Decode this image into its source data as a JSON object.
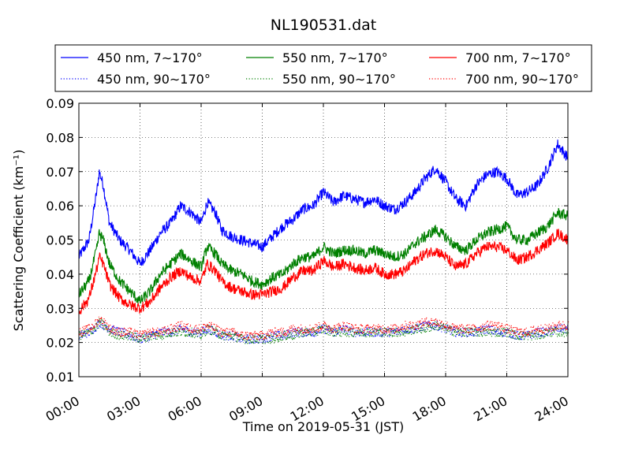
{
  "chart_data": {
    "type": "line",
    "title": "NL190531.dat",
    "xlabel": "Time on 2019-05-31 (JST)",
    "ylabel": "Scattering Coefficient (km⁻¹)",
    "ylim": [
      0.01,
      0.09
    ],
    "xlim": [
      "00:00",
      "24:00"
    ],
    "x_ticks": [
      "00:00",
      "03:00",
      "06:00",
      "09:00",
      "12:00",
      "15:00",
      "18:00",
      "21:00",
      "24:00"
    ],
    "y_ticks": [
      "0.01",
      "0.02",
      "0.03",
      "0.04",
      "0.05",
      "0.06",
      "0.07",
      "0.08",
      "0.09"
    ],
    "grid": true,
    "legend_position": "top",
    "x_hours": [
      0,
      0.5,
      0.9,
      1.0,
      1.2,
      1.5,
      2.0,
      2.5,
      3.0,
      3.5,
      4.0,
      4.5,
      5.0,
      5.5,
      6.0,
      6.3,
      6.7,
      7.0,
      7.5,
      8.0,
      8.5,
      9.0,
      9.5,
      10.0,
      10.5,
      11.0,
      11.5,
      12.0,
      12.5,
      13.0,
      13.5,
      14.0,
      14.5,
      15.0,
      15.5,
      16.0,
      16.5,
      17.0,
      17.5,
      18.0,
      18.5,
      19.0,
      19.5,
      20.0,
      20.5,
      21.0,
      21.5,
      22.0,
      22.5,
      23.0,
      23.5,
      24.0
    ],
    "series": [
      {
        "name": "450 nm, 7∼170°",
        "color": "#0000ff",
        "style": "solid",
        "values": [
          0.045,
          0.05,
          0.065,
          0.07,
          0.066,
          0.055,
          0.05,
          0.047,
          0.043,
          0.047,
          0.052,
          0.055,
          0.06,
          0.058,
          0.055,
          0.061,
          0.058,
          0.053,
          0.051,
          0.05,
          0.049,
          0.048,
          0.051,
          0.054,
          0.056,
          0.059,
          0.06,
          0.064,
          0.061,
          0.063,
          0.062,
          0.061,
          0.062,
          0.06,
          0.059,
          0.061,
          0.064,
          0.068,
          0.071,
          0.067,
          0.062,
          0.06,
          0.066,
          0.069,
          0.07,
          0.068,
          0.063,
          0.064,
          0.066,
          0.071,
          0.078,
          0.074
        ]
      },
      {
        "name": "450 nm, 90∼170°",
        "color": "#0000ff",
        "style": "dotted",
        "values": [
          0.022,
          0.023,
          0.025,
          0.026,
          0.025,
          0.024,
          0.023,
          0.022,
          0.021,
          0.022,
          0.023,
          0.023,
          0.024,
          0.023,
          0.023,
          0.024,
          0.023,
          0.022,
          0.022,
          0.021,
          0.021,
          0.021,
          0.022,
          0.022,
          0.023,
          0.023,
          0.023,
          0.024,
          0.023,
          0.024,
          0.023,
          0.023,
          0.023,
          0.023,
          0.023,
          0.024,
          0.024,
          0.025,
          0.025,
          0.024,
          0.023,
          0.023,
          0.023,
          0.024,
          0.023,
          0.023,
          0.022,
          0.022,
          0.023,
          0.023,
          0.024,
          0.024
        ]
      },
      {
        "name": "550 nm, 7∼170°",
        "color": "#008000",
        "style": "solid",
        "values": [
          0.034,
          0.038,
          0.048,
          0.052,
          0.05,
          0.043,
          0.038,
          0.035,
          0.032,
          0.035,
          0.04,
          0.043,
          0.046,
          0.044,
          0.042,
          0.048,
          0.046,
          0.043,
          0.041,
          0.04,
          0.038,
          0.037,
          0.039,
          0.04,
          0.043,
          0.045,
          0.045,
          0.048,
          0.046,
          0.047,
          0.047,
          0.046,
          0.047,
          0.046,
          0.045,
          0.046,
          0.049,
          0.051,
          0.053,
          0.051,
          0.048,
          0.047,
          0.05,
          0.052,
          0.053,
          0.054,
          0.05,
          0.05,
          0.052,
          0.054,
          0.058,
          0.057
        ]
      },
      {
        "name": "550 nm, 90∼170°",
        "color": "#008000",
        "style": "dotted",
        "values": [
          0.022,
          0.023,
          0.025,
          0.026,
          0.025,
          0.023,
          0.022,
          0.022,
          0.021,
          0.022,
          0.022,
          0.023,
          0.023,
          0.023,
          0.022,
          0.024,
          0.023,
          0.022,
          0.022,
          0.021,
          0.021,
          0.021,
          0.021,
          0.022,
          0.022,
          0.023,
          0.023,
          0.024,
          0.023,
          0.023,
          0.023,
          0.023,
          0.023,
          0.023,
          0.023,
          0.023,
          0.024,
          0.024,
          0.025,
          0.024,
          0.023,
          0.023,
          0.023,
          0.023,
          0.023,
          0.023,
          0.022,
          0.022,
          0.022,
          0.023,
          0.023,
          0.023
        ]
      },
      {
        "name": "700 nm, 7∼170°",
        "color": "#ff0000",
        "style": "solid",
        "values": [
          0.029,
          0.033,
          0.042,
          0.045,
          0.043,
          0.037,
          0.033,
          0.031,
          0.03,
          0.032,
          0.036,
          0.039,
          0.041,
          0.039,
          0.038,
          0.043,
          0.041,
          0.038,
          0.036,
          0.035,
          0.034,
          0.034,
          0.035,
          0.036,
          0.039,
          0.041,
          0.041,
          0.044,
          0.042,
          0.043,
          0.042,
          0.041,
          0.042,
          0.04,
          0.04,
          0.041,
          0.044,
          0.046,
          0.047,
          0.045,
          0.042,
          0.043,
          0.046,
          0.048,
          0.048,
          0.047,
          0.044,
          0.045,
          0.047,
          0.049,
          0.052,
          0.05
        ]
      },
      {
        "name": "700 nm, 90∼170°",
        "color": "#ff0000",
        "style": "dotted",
        "values": [
          0.023,
          0.024,
          0.026,
          0.027,
          0.026,
          0.024,
          0.023,
          0.023,
          0.022,
          0.023,
          0.023,
          0.024,
          0.025,
          0.024,
          0.024,
          0.025,
          0.024,
          0.023,
          0.023,
          0.022,
          0.022,
          0.022,
          0.023,
          0.023,
          0.024,
          0.024,
          0.024,
          0.025,
          0.024,
          0.025,
          0.024,
          0.024,
          0.024,
          0.024,
          0.024,
          0.025,
          0.025,
          0.026,
          0.026,
          0.025,
          0.024,
          0.024,
          0.024,
          0.025,
          0.025,
          0.024,
          0.023,
          0.023,
          0.024,
          0.024,
          0.025,
          0.025
        ]
      }
    ]
  }
}
